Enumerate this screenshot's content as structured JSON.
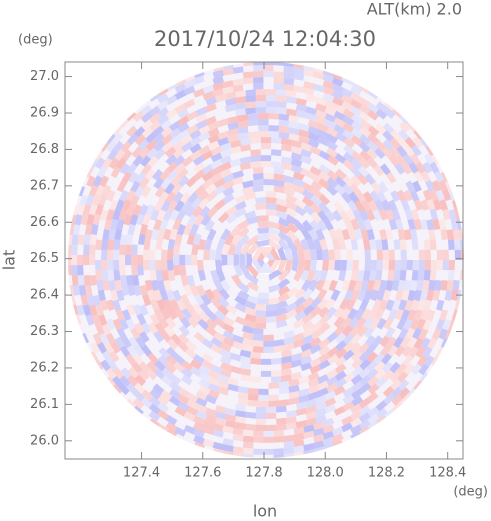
{
  "chart_data": {
    "type": "radar-field",
    "title": "2017/10/24 12:04:30",
    "annotation": "ALT(km) 2.0",
    "x_label": "lon",
    "y_label": "lat",
    "x_unit": "(deg)",
    "y_unit": "(deg)",
    "xlim": [
      127.15,
      128.45
    ],
    "ylim": [
      25.95,
      27.04
    ],
    "xticks": [
      127.4,
      127.6,
      127.8,
      {
        "value": 128,
        "label": "128.0"
      },
      128.2,
      128.4
    ],
    "yticks": [
      {
        "value": 26,
        "label": "26.0"
      },
      26.1,
      26.2,
      26.3,
      26.4,
      26.5,
      26.6,
      26.7,
      26.8,
      26.9,
      {
        "value": 27,
        "label": "27.0"
      }
    ]
  }
}
